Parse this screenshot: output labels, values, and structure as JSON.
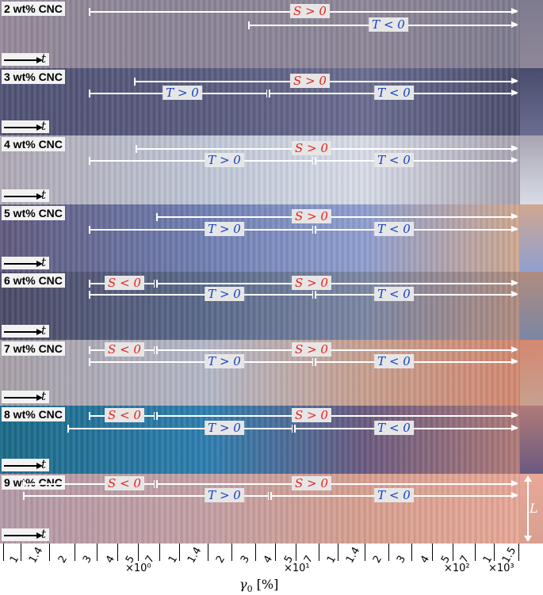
{
  "panels": [
    {
      "label": "2 wt% CNC",
      "time": "t",
      "S_tag": "S > 0",
      "T_tag": "T < 0",
      "colors": [
        "#968a9a",
        "#8b8497",
        "#8f8799",
        "#7f7b8f"
      ]
    },
    {
      "label": "3 wt% CNC",
      "time": "t",
      "S_tag": "S > 0",
      "T_tag1": "T > 0",
      "T_tag2": "T < 0",
      "colors": [
        "#505275",
        "#5a5c80",
        "#6b6d92",
        "#4a4c6c"
      ]
    },
    {
      "label": "4 wt% CNC",
      "time": "t",
      "S_tag": "S > 0",
      "T_tag1": "T > 0",
      "T_tag2": "T < 0",
      "colors": [
        "#b0aab6",
        "#c0c8d8",
        "#d8dde8",
        "#a9a4b2"
      ]
    },
    {
      "label": "5 wt% CNC",
      "time": "t",
      "S_tag": "S > 0",
      "T_tag1": "T > 0",
      "T_tag2": "T < 0",
      "colors": [
        "#605a7e",
        "#7080b4",
        "#8f9fd0",
        "#d0a890"
      ]
    },
    {
      "label": "6 wt% CNC",
      "time": "t",
      "S_tag1": "S < 0",
      "S_tag2": "S > 0",
      "T_tag1": "T > 0",
      "T_tag2": "T < 0",
      "colors": [
        "#4b4a66",
        "#5a6a8c",
        "#7b86a4",
        "#b08c80"
      ]
    },
    {
      "label": "7 wt% CNC",
      "time": "t",
      "S_tag1": "S < 0",
      "S_tag2": "S > 0",
      "T_tag1": "T > 0",
      "T_tag2": "T < 0",
      "colors": [
        "#a8a0a8",
        "#b4b8c8",
        "#c8a090",
        "#d48870"
      ]
    },
    {
      "label": "8 wt% CNC",
      "time": "t",
      "S_tag1": "S < 0",
      "S_tag2": "S > 0",
      "T_tag1": "T > 0",
      "T_tag2": "T < 0",
      "colors": [
        "#1a6a88",
        "#2d7eb0",
        "#6a5a80",
        "#b07a78"
      ]
    },
    {
      "label": "9 wt% CNC",
      "time": "t",
      "S_tag1": "S < 0",
      "S_tag2": "S > 0",
      "T_tag1": "T > 0",
      "T_tag2": "T < 0",
      "colors": [
        "#b49aa8",
        "#c4a0a4",
        "#d8a090",
        "#e8a898"
      ]
    }
  ],
  "length_label": "L",
  "x_axis": {
    "ticks": [
      "1",
      "1.4",
      "2",
      "3",
      "4",
      "5",
      "7",
      "1",
      "1.4",
      "2",
      "3",
      "4",
      "5",
      "7",
      "1",
      "1.4",
      "2",
      "3",
      "4",
      "5",
      "7",
      "1",
      "1.5"
    ],
    "multipliers": [
      "×10⁰",
      "×10¹",
      "×10²",
      "×10³"
    ],
    "label_symbol": "γ",
    "label_sub": "0",
    "label_unit": " [%]",
    "scale": "log"
  }
}
